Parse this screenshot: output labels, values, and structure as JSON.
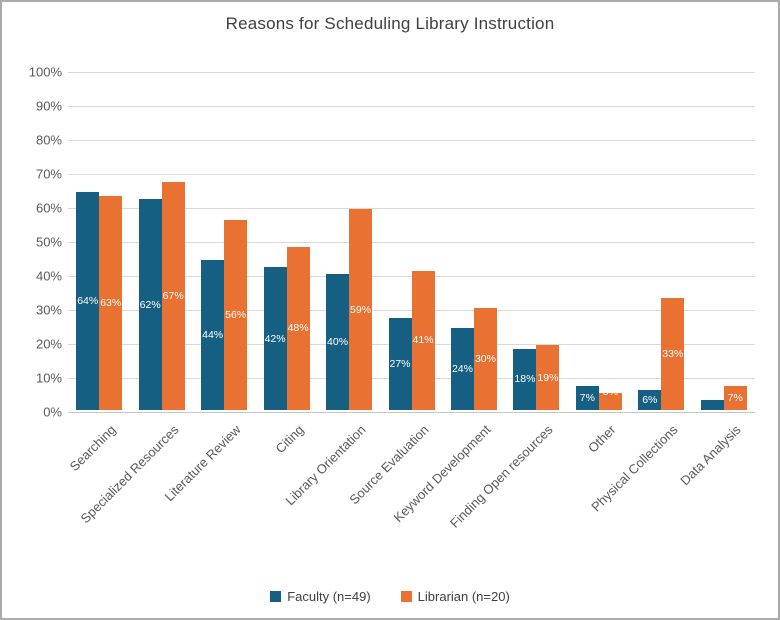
{
  "title": "Reasons for Scheduling Library Instruction",
  "colors": {
    "faculty": "#156082",
    "librarian": "#e97132",
    "gridline": "#d9d9d9",
    "axis_line": "#c6c6c6",
    "tick_text": "#595959",
    "title_text": "#404040",
    "bar_label_text": "#ffffff",
    "frame_border": "#ababab"
  },
  "chart_data": {
    "type": "bar",
    "title": "Reasons for Scheduling Library Instruction",
    "categories": [
      "Searching",
      "Specialized Resources",
      "Literature Review",
      "Citing",
      "Library Orientation",
      "Source Evaluation",
      "Keyword Development",
      "Finding Open resources",
      "Other",
      "Physical Collections",
      "Data Analysis"
    ],
    "series": [
      {
        "name": "Faculty (n=49)",
        "color": "#156082",
        "values": [
          64,
          62,
          44,
          42,
          40,
          27,
          24,
          18,
          7,
          6,
          3
        ],
        "labels": [
          "64%",
          "62%",
          "44%",
          "42%",
          "40%",
          "27%",
          "24%",
          "18%",
          "7%",
          "6%",
          ""
        ]
      },
      {
        "name": "Librarian (n=20)",
        "color": "#e97132",
        "values": [
          63,
          67,
          56,
          48,
          59,
          41,
          30,
          19,
          5,
          33,
          7
        ],
        "labels": [
          "63%",
          "67%",
          "56%",
          "48%",
          "59%",
          "41%",
          "30%",
          "19%",
          "5%",
          "33%",
          "7%"
        ]
      }
    ],
    "xlabel": "",
    "ylabel": "",
    "ylim": [
      0,
      100
    ],
    "ytick_step": 10,
    "ytick_labels": [
      "0%",
      "10%",
      "20%",
      "30%",
      "40%",
      "50%",
      "60%",
      "70%",
      "80%",
      "90%",
      "100%"
    ],
    "grid": true,
    "data_labels": "inside-center-white",
    "legend_position": "bottom"
  }
}
